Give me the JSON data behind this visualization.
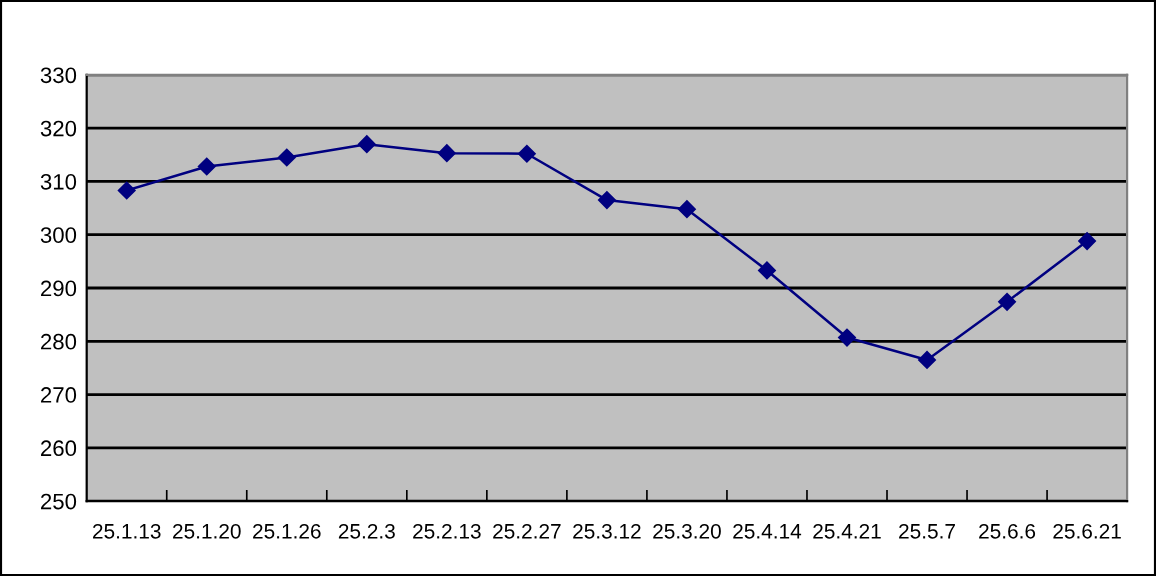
{
  "chart_data": {
    "type": "line",
    "categories": [
      "25.1.13",
      "25.1.20",
      "25.1.26",
      "25.2.3",
      "25.2.13",
      "25.2.27",
      "25.3.12",
      "25.3.20",
      "25.4.14",
      "25.4.21",
      "25.5.7",
      "25.6.6",
      "25.6.21"
    ],
    "series": [
      {
        "color": "#000080",
        "values": [
          308.3,
          312.8,
          314.5,
          317,
          315.3,
          315.2,
          306.5,
          304.8,
          293.3,
          280.7,
          276.5,
          287.4,
          298.8
        ]
      }
    ],
    "ylim": [
      250,
      330
    ],
    "yticks": [
      250,
      260,
      270,
      280,
      290,
      300,
      310,
      320,
      330
    ],
    "grid": "y",
    "marker": "diamond",
    "line_style": "solid",
    "legend": false
  }
}
